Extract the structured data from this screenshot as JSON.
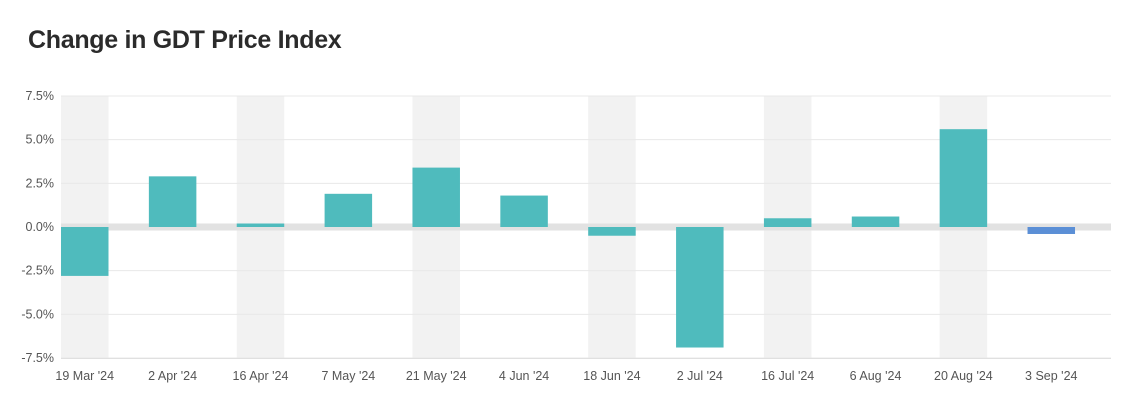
{
  "chart_data": {
    "type": "bar",
    "title": "Change in GDT Price Index",
    "xlabel": "",
    "ylabel": "",
    "ylim": [
      -7.5,
      7.5
    ],
    "yticks": [
      "7.5%",
      "5.0%",
      "2.5%",
      "0.0%",
      "-2.5%",
      "-5.0%",
      "-7.5%"
    ],
    "ytick_values": [
      7.5,
      5.0,
      2.5,
      0.0,
      -2.5,
      -5.0,
      -7.5
    ],
    "categories": [
      "19 Mar '24",
      "2 Apr '24",
      "16 Apr '24",
      "7 May '24",
      "21 May '24",
      "4 Jun '24",
      "18 Jun '24",
      "2 Jul '24",
      "16 Jul '24",
      "6 Aug '24",
      "20 Aug '24",
      "3 Sep '24"
    ],
    "values": [
      -2.8,
      2.9,
      0.2,
      1.9,
      3.4,
      1.8,
      -0.5,
      -6.9,
      0.5,
      0.6,
      5.6,
      -0.4
    ],
    "colors": [
      "#4fbbbd",
      "#4fbbbd",
      "#4fbbbd",
      "#4fbbbd",
      "#4fbbbd",
      "#4fbbbd",
      "#4fbbbd",
      "#4fbbbd",
      "#4fbbbd",
      "#4fbbbd",
      "#4fbbbd",
      "#5b8fd6"
    ],
    "band_color": "#f2f2f2",
    "zero_line_color": "#e2e2e2",
    "grid": true
  }
}
